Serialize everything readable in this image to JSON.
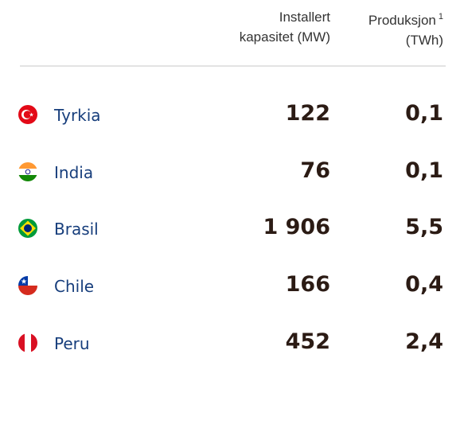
{
  "table": {
    "columns": [
      {
        "line1": "Installert",
        "line2": "kapasitet (MW)"
      },
      {
        "line1": "Produksjon",
        "note": "1",
        "line2": "(TWh)"
      }
    ],
    "rows": [
      [
        "Tyrkia",
        "122",
        "0,1"
      ],
      [
        "India",
        "76",
        "0,1"
      ],
      [
        "Brasil",
        "1 906",
        "5,5"
      ],
      [
        "Chile",
        "166",
        "0,4"
      ],
      [
        "Peru",
        "452",
        "2,4"
      ]
    ]
  }
}
